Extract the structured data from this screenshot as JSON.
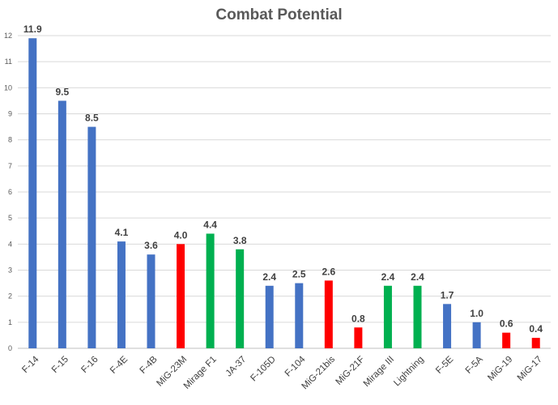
{
  "chart_data": {
    "type": "bar",
    "title": "Combat Potential",
    "xlabel": "",
    "ylabel": "",
    "ylim": [
      0,
      12
    ],
    "y_ticks": [
      0,
      1,
      2,
      3,
      4,
      5,
      6,
      7,
      8,
      9,
      10,
      11,
      12
    ],
    "grid": true,
    "legend": "none",
    "categories": [
      "F-14",
      "F-15",
      "F-16",
      "F-4E",
      "F-4B",
      "MiG-23M",
      "Mirage F1",
      "JA-37",
      "F-105D",
      "F-104",
      "MiG-21bis",
      "MiG-21F",
      "Mirage III",
      "Lightning",
      "F-5E",
      "F-5A",
      "MiG-19",
      "MiG-17"
    ],
    "values": [
      11.9,
      9.5,
      8.5,
      4.1,
      3.6,
      4.0,
      4.4,
      3.8,
      2.4,
      2.5,
      2.6,
      0.8,
      2.4,
      2.4,
      1.7,
      1.0,
      0.6,
      0.4
    ],
    "data_labels": [
      "11.9",
      "9.5",
      "8.5",
      "4.1",
      "3.6",
      "4.0",
      "4.4",
      "3.8",
      "2.4",
      "2.5",
      "2.6",
      "0.8",
      "2.4",
      "2.4",
      "1.7",
      "1.0",
      "0.6",
      "0.4"
    ],
    "bar_colors": [
      "#4472c4",
      "#4472c4",
      "#4472c4",
      "#4472c4",
      "#4472c4",
      "#ff0000",
      "#00b050",
      "#00b050",
      "#4472c4",
      "#4472c4",
      "#ff0000",
      "#ff0000",
      "#00b050",
      "#00b050",
      "#4472c4",
      "#4472c4",
      "#ff0000",
      "#ff0000"
    ]
  }
}
